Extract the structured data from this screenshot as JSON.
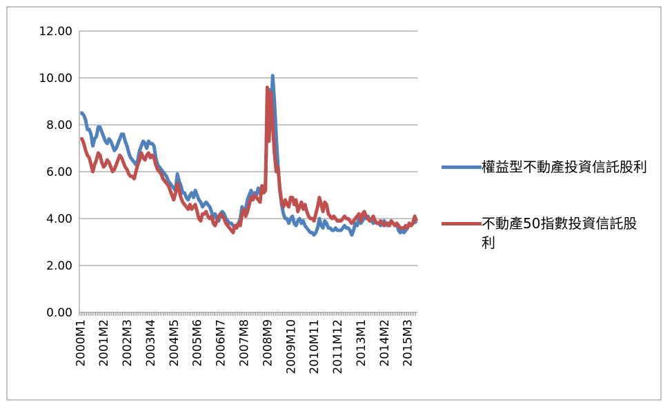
{
  "chart_data": {
    "type": "line",
    "categories": [
      "2000M1",
      null,
      null,
      null,
      null,
      null,
      null,
      null,
      null,
      null,
      null,
      null,
      null,
      "2001M2",
      null,
      null,
      null,
      null,
      null,
      null,
      null,
      null,
      null,
      null,
      null,
      null,
      "2002M3",
      null,
      null,
      null,
      null,
      null,
      null,
      null,
      null,
      null,
      null,
      null,
      null,
      "2003M4",
      null,
      null,
      null,
      null,
      null,
      null,
      null,
      null,
      null,
      null,
      null,
      null,
      "2004M5",
      null,
      null,
      null,
      null,
      null,
      null,
      null,
      null,
      null,
      null,
      null,
      null,
      "2005M6",
      null,
      null,
      null,
      null,
      null,
      null,
      null,
      null,
      null,
      null,
      null,
      null,
      "2006M7",
      null,
      null,
      null,
      null,
      null,
      null,
      null,
      null,
      null,
      null,
      null,
      null,
      "2007M8",
      null,
      null,
      null,
      null,
      null,
      null,
      null,
      null,
      null,
      null,
      null,
      null,
      "2008M9",
      null,
      null,
      null,
      null,
      null,
      null,
      null,
      null,
      null,
      null,
      null,
      null,
      "2009M10",
      null,
      null,
      null,
      null,
      null,
      null,
      null,
      null,
      null,
      null,
      null,
      null,
      "2010M11",
      null,
      null,
      null,
      null,
      null,
      null,
      null,
      null,
      null,
      null,
      null,
      null,
      "2011M12",
      null,
      null,
      null,
      null,
      null,
      null,
      null,
      null,
      null,
      null,
      null,
      null,
      "2013M1",
      null,
      null,
      null,
      null,
      null,
      null,
      null,
      null,
      null,
      null,
      null,
      null,
      "2014M2",
      null,
      null,
      null,
      null,
      null,
      null,
      null,
      null,
      null,
      null,
      null,
      null,
      "2015M3",
      null,
      null,
      null,
      null,
      null
    ],
    "series": [
      {
        "name": "權益型不動產投資信託股利",
        "color": "#4f81bd",
        "values": [
          8.5,
          8.5,
          8.4,
          8.2,
          7.8,
          7.8,
          7.6,
          7.1,
          7.4,
          7.5,
          7.9,
          7.9,
          7.7,
          7.5,
          7.3,
          7.2,
          7.4,
          7.3,
          7.1,
          6.9,
          7.0,
          7.2,
          7.4,
          7.6,
          7.6,
          7.3,
          7.1,
          6.8,
          6.6,
          6.5,
          6.4,
          6.3,
          6.5,
          6.9,
          7.1,
          7.3,
          7.2,
          7.0,
          7.3,
          7.2,
          7.2,
          7.1,
          6.6,
          6.3,
          6.2,
          6.1,
          6.0,
          5.9,
          5.8,
          5.6,
          5.5,
          5.4,
          5.3,
          5.2,
          5.9,
          5.6,
          5.4,
          5.1,
          5.1,
          4.9,
          4.8,
          5.0,
          5.1,
          4.9,
          5.2,
          5.0,
          4.8,
          4.7,
          4.5,
          4.6,
          4.7,
          4.6,
          4.5,
          4.3,
          4.0,
          4.2,
          4.0,
          3.9,
          4.2,
          4.3,
          4.2,
          4.0,
          3.9,
          3.8,
          3.8,
          3.7,
          3.6,
          3.7,
          3.8,
          4.0,
          4.5,
          4.3,
          4.4,
          4.8,
          5.0,
          5.2,
          5.0,
          5.1,
          5.0,
          5.3,
          5.1,
          5.2,
          5.1,
          5.5,
          8.5,
          9.5,
          8.0,
          10.1,
          9.0,
          7.5,
          6.2,
          5.2,
          4.6,
          4.2,
          4.0,
          4.0,
          3.8,
          4.0,
          4.1,
          3.8,
          3.7,
          3.9,
          4.0,
          3.8,
          3.9,
          3.7,
          3.6,
          3.5,
          3.4,
          3.4,
          3.3,
          3.4,
          3.6,
          4.0,
          3.7,
          3.6,
          3.9,
          3.8,
          3.6,
          3.6,
          3.5,
          3.5,
          3.6,
          3.5,
          3.5,
          3.5,
          3.6,
          3.7,
          3.6,
          3.6,
          3.5,
          3.3,
          3.5,
          3.8,
          3.7,
          4.0,
          3.8,
          3.9,
          4.1,
          4.0,
          4.1,
          3.9,
          3.9,
          3.8,
          3.9,
          3.8,
          3.8,
          3.7,
          3.8,
          3.9,
          3.8,
          3.7,
          3.8,
          3.9,
          3.8,
          3.7,
          3.8,
          3.5,
          3.4,
          3.5,
          3.4,
          3.5,
          3.6,
          3.8,
          3.7,
          3.8,
          3.9,
          3.8
        ]
      },
      {
        "name": "不動產50指數投資信託股利",
        "color": "#c0504d",
        "values": [
          7.4,
          7.4,
          7.2,
          6.9,
          6.7,
          6.6,
          6.3,
          6.0,
          6.3,
          6.5,
          6.8,
          6.7,
          6.4,
          6.2,
          6.3,
          6.5,
          6.4,
          6.2,
          6.0,
          6.1,
          6.3,
          6.5,
          6.7,
          6.6,
          6.4,
          6.2,
          6.1,
          5.9,
          5.8,
          5.8,
          5.7,
          6.0,
          6.3,
          6.5,
          6.8,
          6.6,
          6.5,
          6.7,
          6.8,
          6.6,
          6.7,
          6.6,
          6.3,
          6.1,
          6.0,
          5.9,
          5.7,
          5.6,
          5.5,
          5.4,
          5.2,
          5.0,
          4.8,
          5.1,
          5.5,
          5.2,
          4.9,
          4.7,
          4.6,
          4.5,
          4.4,
          4.6,
          4.4,
          4.5,
          4.6,
          4.3,
          4.0,
          3.9,
          4.2,
          4.2,
          4.3,
          4.1,
          4.0,
          4.1,
          3.8,
          3.7,
          3.9,
          4.1,
          4.2,
          4.1,
          4.0,
          3.8,
          3.7,
          3.6,
          3.5,
          3.4,
          3.7,
          3.6,
          3.8,
          3.7,
          4.2,
          4.4,
          4.1,
          4.3,
          4.6,
          4.9,
          4.8,
          5.0,
          4.9,
          4.8,
          4.7,
          5.4,
          5.1,
          5.2,
          9.6,
          7.3,
          9.4,
          8.0,
          6.8,
          6.0,
          6.2,
          5.3,
          4.7,
          4.5,
          4.8,
          4.6,
          4.5,
          4.9,
          4.9,
          4.6,
          4.8,
          4.3,
          4.5,
          4.7,
          4.4,
          4.6,
          4.3,
          4.1,
          4.0,
          4.0,
          3.9,
          4.2,
          4.5,
          4.9,
          4.6,
          4.3,
          4.7,
          4.6,
          4.2,
          4.1,
          4.0,
          4.1,
          4.0,
          3.9,
          3.9,
          3.9,
          4.0,
          4.1,
          4.0,
          4.0,
          3.9,
          3.8,
          3.9,
          4.0,
          4.1,
          4.2,
          3.9,
          4.2,
          4.3,
          4.1,
          4.0,
          3.9,
          4.0,
          4.1,
          3.9,
          3.8,
          3.8,
          3.9,
          3.8,
          3.7,
          3.8,
          3.8,
          3.7,
          3.9,
          3.8,
          3.7,
          3.8,
          3.7,
          3.6,
          3.6,
          3.6,
          3.7,
          3.6,
          3.8,
          3.7,
          3.8,
          4.1,
          3.9
        ]
      }
    ],
    "ylim": [
      0,
      12
    ],
    "yticks": [
      {
        "value": 0,
        "label": "0.00"
      },
      {
        "value": 2,
        "label": "2.00"
      },
      {
        "value": 4,
        "label": "4.00"
      },
      {
        "value": 6,
        "label": "6.00"
      },
      {
        "value": 8,
        "label": "8.00"
      },
      {
        "value": 10,
        "label": "10.00"
      },
      {
        "value": 12,
        "label": "12.00"
      }
    ],
    "grid": true,
    "legend": "right"
  }
}
